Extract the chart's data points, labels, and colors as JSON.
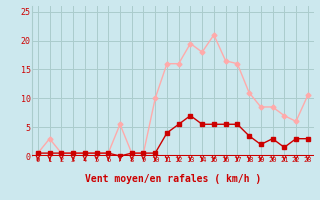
{
  "x": [
    0,
    1,
    2,
    3,
    4,
    5,
    6,
    7,
    8,
    9,
    10,
    11,
    12,
    13,
    14,
    15,
    16,
    17,
    18,
    19,
    20,
    21,
    22,
    23
  ],
  "rafales": [
    0.5,
    3,
    0.5,
    0.5,
    0.5,
    0.5,
    0.5,
    5.5,
    0.5,
    0.5,
    10,
    16,
    16,
    19.5,
    18,
    21,
    16.5,
    16,
    11,
    8.5,
    8.5,
    7,
    6,
    10.5
  ],
  "moyen": [
    0.5,
    0.5,
    0.5,
    0.5,
    0.5,
    0.5,
    0.5,
    0,
    0.5,
    0.5,
    0.5,
    4,
    5.5,
    7,
    5.5,
    5.5,
    5.5,
    5.5,
    3.5,
    2,
    3,
    1.5,
    3,
    3
  ],
  "bg_color": "#cce8ee",
  "grid_color": "#aacccc",
  "rafales_color": "#ffaaaa",
  "moyen_color": "#cc0000",
  "xlabel": "Vent moyen/en rafales ( km/h )",
  "ylim": [
    0,
    26
  ],
  "yticks": [
    0,
    5,
    10,
    15,
    20,
    25
  ],
  "xlim": [
    -0.5,
    23.5
  ]
}
